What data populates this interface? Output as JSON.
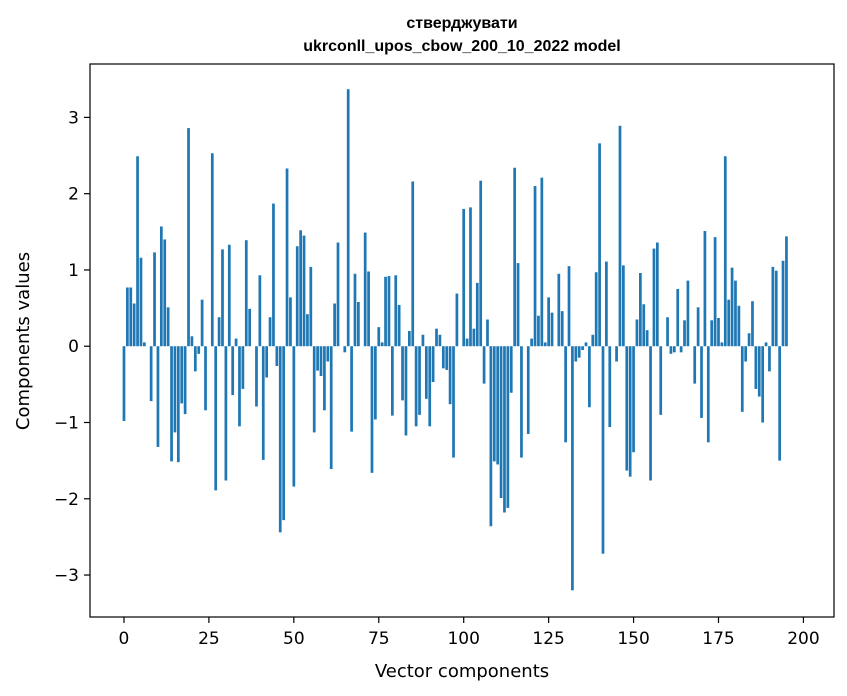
{
  "chart_data": {
    "type": "bar",
    "title": "стверджувати",
    "subtitle": "ukrconll_upos_cbow_200_10_2022 model",
    "xlabel": "Vector components",
    "ylabel": "Components values",
    "xlim": [
      -10,
      209
    ],
    "ylim": [
      -3.55,
      3.7
    ],
    "xticks": [
      0,
      25,
      50,
      75,
      100,
      125,
      150,
      175,
      200
    ],
    "yticks": [
      -3,
      -2,
      -1,
      0,
      1,
      2,
      3
    ],
    "xtick_labels": [
      "0",
      "25",
      "50",
      "75",
      "100",
      "125",
      "150",
      "175",
      "200"
    ],
    "ytick_labels": [
      "−3",
      "−2",
      "−1",
      "0",
      "1",
      "2",
      "3"
    ],
    "grid": false,
    "bar_color": "#1f77b4",
    "values": [
      -0.98,
      0.77,
      0.77,
      0.56,
      2.49,
      1.16,
      0.05,
      0.0,
      -0.72,
      1.23,
      -1.32,
      1.57,
      1.4,
      0.51,
      -1.51,
      -1.13,
      -1.52,
      -0.75,
      -0.89,
      2.86,
      0.13,
      -0.33,
      -0.1,
      0.61,
      -0.84,
      0.0,
      2.53,
      -1.89,
      0.38,
      1.27,
      -1.76,
      1.33,
      -0.64,
      0.1,
      -1.05,
      -0.56,
      1.39,
      0.49,
      0.0,
      -0.79,
      0.93,
      -1.49,
      -0.41,
      0.38,
      1.87,
      -0.26,
      -2.44,
      -2.28,
      2.33,
      0.64,
      -1.84,
      1.31,
      1.52,
      1.45,
      0.42,
      1.04,
      -1.13,
      -0.32,
      -0.39,
      -0.84,
      -0.2,
      -1.61,
      0.56,
      1.36,
      0.0,
      -0.08,
      3.37,
      -1.12,
      0.95,
      0.58,
      0.0,
      1.49,
      0.98,
      -1.66,
      -0.96,
      0.25,
      0.05,
      0.91,
      0.92,
      -0.91,
      0.93,
      0.54,
      -0.71,
      -1.17,
      0.2,
      2.16,
      -1.05,
      -0.9,
      0.15,
      -0.69,
      -1.05,
      -0.47,
      0.23,
      0.15,
      -0.29,
      -0.31,
      -0.76,
      -1.46,
      0.69,
      0.0,
      1.8,
      0.1,
      1.82,
      0.23,
      0.83,
      2.17,
      -0.49,
      0.35,
      -2.36,
      -1.51,
      -1.55,
      -1.99,
      -2.18,
      -2.12,
      -0.61,
      2.34,
      1.09,
      -1.46,
      0.0,
      -1.15,
      0.1,
      2.1,
      0.4,
      2.21,
      0.05,
      0.64,
      0.44,
      0.0,
      0.95,
      0.46,
      -1.26,
      1.05,
      -3.2,
      -0.2,
      -0.15,
      -0.05,
      0.05,
      -0.8,
      0.15,
      0.97,
      2.66,
      -2.72,
      1.11,
      -1.06,
      0.0,
      -0.2,
      2.89,
      1.06,
      -1.63,
      -1.71,
      -1.39,
      0.35,
      0.96,
      0.55,
      0.21,
      -1.76,
      1.28,
      1.36,
      -0.9,
      0.0,
      0.38,
      -0.1,
      -0.08,
      0.75,
      -0.08,
      0.34,
      0.86,
      0.0,
      -0.49,
      0.51,
      -0.94,
      1.51,
      -1.26,
      0.34,
      1.43,
      0.37,
      0.05,
      2.49,
      0.61,
      1.03,
      0.86,
      0.53,
      -0.86,
      -0.2,
      0.17,
      0.59,
      -0.56,
      -0.66,
      -1.0,
      0.05,
      -0.33,
      1.04,
      0.99,
      -1.5,
      1.12,
      1.44
    ]
  }
}
